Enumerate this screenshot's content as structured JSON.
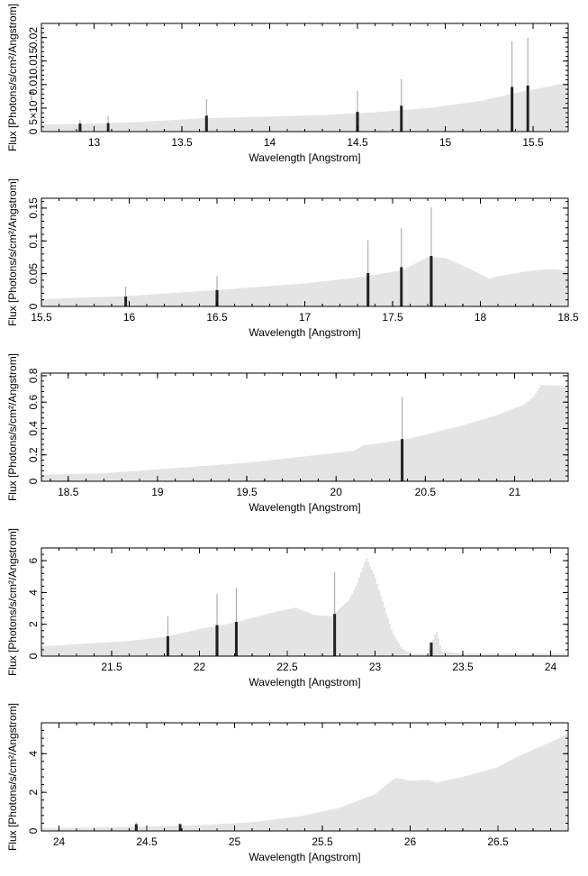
{
  "chart_data": [
    {
      "type": "bar",
      "xlabel": "Wavelength [Angstrom]",
      "ylabel": "Flux [Photons/s/cm²/Angstrom]",
      "xlim": [
        12.7,
        15.7
      ],
      "ylim": [
        0,
        0.023
      ],
      "xticks": [
        13,
        13.5,
        14,
        14.5,
        15,
        15.5
      ],
      "yticks": [
        0,
        0.005,
        0.01,
        0.015,
        0.02
      ],
      "ytick_labels": [
        "0",
        "5×10⁻³",
        "0.01",
        "0.015",
        "0.02"
      ],
      "continuum": [
        [
          12.7,
          0.0015
        ],
        [
          13.0,
          0.0017
        ],
        [
          13.3,
          0.0021
        ],
        [
          13.6,
          0.0028
        ],
        [
          14.0,
          0.0032
        ],
        [
          14.3,
          0.0035
        ],
        [
          14.6,
          0.0041
        ],
        [
          14.9,
          0.005
        ],
        [
          15.2,
          0.0065
        ],
        [
          15.4,
          0.0082
        ],
        [
          15.55,
          0.0093
        ],
        [
          15.7,
          0.0104
        ]
      ],
      "lines": [
        {
          "x": 12.92,
          "y": 0.0017,
          "err": 0.0008
        },
        {
          "x": 13.08,
          "y": 0.0018,
          "err": 0.0016
        },
        {
          "x": 13.64,
          "y": 0.0034,
          "err": 0.0035
        },
        {
          "x": 14.5,
          "y": 0.0042,
          "err": 0.0044
        },
        {
          "x": 14.75,
          "y": 0.0055,
          "err": 0.0057
        },
        {
          "x": 15.38,
          "y": 0.0095,
          "err": 0.0097
        },
        {
          "x": 15.47,
          "y": 0.0098,
          "err": 0.0101
        }
      ]
    },
    {
      "type": "bar",
      "xlabel": "Wavelength [Angstrom]",
      "ylabel": "Flux [Photons/s/cm²/Angstrom]",
      "xlim": [
        15.5,
        18.5
      ],
      "ylim": [
        0,
        0.165
      ],
      "xticks": [
        15.5,
        16,
        16.5,
        17,
        17.5,
        18,
        18.5
      ],
      "yticks": [
        0,
        0.05,
        0.1,
        0.15
      ],
      "ytick_labels": [
        "0",
        "0.05",
        "0.1",
        "0.15"
      ],
      "continuum": [
        [
          15.5,
          0.011
        ],
        [
          16.0,
          0.016
        ],
        [
          16.5,
          0.025
        ],
        [
          17.0,
          0.035
        ],
        [
          17.3,
          0.044
        ],
        [
          17.55,
          0.055
        ],
        [
          17.7,
          0.075
        ],
        [
          17.8,
          0.074
        ],
        [
          17.95,
          0.056
        ],
        [
          18.05,
          0.042
        ],
        [
          18.1,
          0.046
        ],
        [
          18.3,
          0.055
        ],
        [
          18.4,
          0.057
        ],
        [
          18.5,
          0.055
        ]
      ],
      "lines": [
        {
          "x": 15.98,
          "y": 0.015,
          "err": 0.015
        },
        {
          "x": 16.5,
          "y": 0.025,
          "err": 0.022
        },
        {
          "x": 17.36,
          "y": 0.051,
          "err": 0.05
        },
        {
          "x": 17.55,
          "y": 0.06,
          "err": 0.06
        },
        {
          "x": 17.72,
          "y": 0.077,
          "err": 0.074
        }
      ]
    },
    {
      "type": "bar",
      "xlabel": "Wavelength [Angstrom]",
      "ylabel": "Flux [Photons/s/cm²/Angstrom]",
      "xlim": [
        18.35,
        21.3
      ],
      "ylim": [
        0,
        0.82
      ],
      "xticks": [
        18.5,
        19,
        19.5,
        20,
        20.5,
        21
      ],
      "yticks": [
        0,
        0.2,
        0.4,
        0.6,
        0.8
      ],
      "ytick_labels": [
        "0",
        "0.2",
        "0.4",
        "0.6",
        "0.8"
      ],
      "continuum": [
        [
          18.35,
          0.05
        ],
        [
          18.7,
          0.06
        ],
        [
          19.0,
          0.09
        ],
        [
          19.5,
          0.14
        ],
        [
          19.9,
          0.2
        ],
        [
          20.1,
          0.23
        ],
        [
          20.15,
          0.27
        ],
        [
          20.4,
          0.32
        ],
        [
          20.7,
          0.42
        ],
        [
          20.9,
          0.5
        ],
        [
          21.05,
          0.58
        ],
        [
          21.1,
          0.63
        ],
        [
          21.15,
          0.73
        ],
        [
          21.3,
          0.72
        ]
      ],
      "lines": [
        {
          "x": 20.37,
          "y": 0.32,
          "err": 0.32
        }
      ]
    },
    {
      "type": "bar",
      "xlabel": "Wavelength [Angstrom]",
      "ylabel": "Flux [Photons/s/cm²/Angstrom]",
      "xlim": [
        21.1,
        24.1
      ],
      "ylim": [
        0,
        6.8
      ],
      "xticks": [
        21.5,
        22,
        22.5,
        23,
        23.5,
        24
      ],
      "yticks": [
        0,
        2,
        4,
        6
      ],
      "ytick_labels": [
        "0",
        "2",
        "4",
        "6"
      ],
      "continuum": [
        [
          21.1,
          0.6
        ],
        [
          21.3,
          0.75
        ],
        [
          21.6,
          0.95
        ],
        [
          21.8,
          1.2
        ],
        [
          22.0,
          1.7
        ],
        [
          22.2,
          2.1
        ],
        [
          22.4,
          2.7
        ],
        [
          22.55,
          3.05
        ],
        [
          22.65,
          2.6
        ],
        [
          22.75,
          2.5
        ],
        [
          22.85,
          3.5
        ],
        [
          22.9,
          4.6
        ],
        [
          22.95,
          6.2
        ],
        [
          23.0,
          5.0
        ],
        [
          23.05,
          3.2
        ],
        [
          23.1,
          1.5
        ],
        [
          23.15,
          0.5
        ],
        [
          23.2,
          0.15
        ],
        [
          23.3,
          0.12
        ],
        [
          23.35,
          1.6
        ],
        [
          23.38,
          0.3
        ],
        [
          23.5,
          0.15
        ],
        [
          24.1,
          0.15
        ]
      ],
      "lines": [
        {
          "x": 21.82,
          "y": 1.25,
          "err": 1.25
        },
        {
          "x": 22.1,
          "y": 1.95,
          "err": 1.95
        },
        {
          "x": 22.21,
          "y": 2.15,
          "err": 2.15
        },
        {
          "x": 22.77,
          "y": 2.65,
          "err": 2.65
        },
        {
          "x": 23.32,
          "y": 0.85,
          "err": 0.0
        }
      ]
    },
    {
      "type": "bar",
      "xlabel": "Wavelength [Angstrom]",
      "ylabel": "Flux [Photons/s/cm²/Angstrom]",
      "xlim": [
        23.9,
        26.9
      ],
      "ylim": [
        0,
        5.6
      ],
      "xticks": [
        24,
        24.5,
        25,
        25.5,
        26,
        26.5
      ],
      "yticks": [
        0,
        2,
        4
      ],
      "ytick_labels": [
        "0",
        "2",
        "4"
      ],
      "continuum": [
        [
          23.9,
          0.15
        ],
        [
          24.4,
          0.2
        ],
        [
          24.8,
          0.3
        ],
        [
          25.1,
          0.45
        ],
        [
          25.4,
          0.8
        ],
        [
          25.6,
          1.2
        ],
        [
          25.8,
          1.9
        ],
        [
          25.88,
          2.5
        ],
        [
          25.92,
          2.75
        ],
        [
          26.0,
          2.6
        ],
        [
          26.1,
          2.65
        ],
        [
          26.15,
          2.5
        ],
        [
          26.3,
          2.8
        ],
        [
          26.5,
          3.3
        ],
        [
          26.6,
          3.8
        ],
        [
          26.75,
          4.4
        ],
        [
          26.85,
          4.8
        ],
        [
          26.9,
          5.1
        ]
      ],
      "lines": [
        {
          "x": 24.44,
          "y": 0.35,
          "err": 0.1
        },
        {
          "x": 24.69,
          "y": 0.35,
          "err": 0.05
        }
      ]
    }
  ]
}
